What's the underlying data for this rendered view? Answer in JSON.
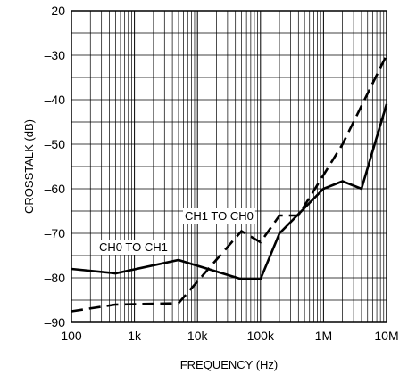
{
  "chart_data": {
    "type": "line",
    "xlabel": "FREQUENCY (Hz)",
    "ylabel": "CROSSTALK (dB)",
    "xscale": "log",
    "xlim": [
      100,
      10000000
    ],
    "ylim": [
      -90,
      -20
    ],
    "grid": true,
    "x_tick_values": [
      100,
      1000,
      10000,
      100000,
      1000000,
      10000000
    ],
    "x_tick_labels": [
      "100",
      "1k",
      "10k",
      "100k",
      "1M",
      "10M"
    ],
    "y_tick_values": [
      -90,
      -80,
      -70,
      -60,
      -50,
      -40,
      -30,
      -20
    ],
    "y_tick_labels": [
      "–90",
      "–80",
      "–70",
      "–60",
      "–50",
      "–40",
      "–30",
      "–20"
    ],
    "series": [
      {
        "name": "CH0 TO CH1",
        "style": "solid",
        "x": [
          100,
          500,
          5000,
          50000,
          100000,
          200000,
          1000000,
          2000000,
          4000000,
          10000000
        ],
        "y": [
          -78,
          -79,
          -76,
          -80.3,
          -80.3,
          -70,
          -60,
          -58.3,
          -60,
          -41
        ]
      },
      {
        "name": "CH1 TO CH0",
        "style": "dashed",
        "x": [
          100,
          500,
          5000,
          50000,
          100000,
          200000,
          400000,
          2000000,
          10000000
        ],
        "y": [
          -87.5,
          -86,
          -85.7,
          -69.5,
          -72,
          -66,
          -66,
          -50,
          -30
        ]
      }
    ],
    "annotations": [
      {
        "text": "CH0 TO CH1",
        "series": 0
      },
      {
        "text": "CH1 TO CH0",
        "series": 1
      }
    ]
  }
}
